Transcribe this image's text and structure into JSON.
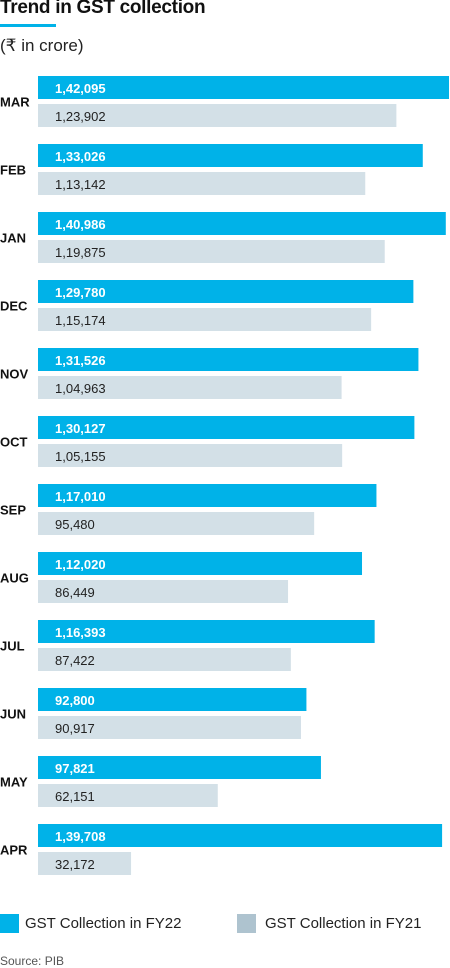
{
  "header": {
    "title": "Trend in GST collection",
    "subtitle": "(₹ in crore)"
  },
  "colors": {
    "fy22": "#00b2e8",
    "fy21": "#d3e0e7",
    "fy21_legend": "#aec3cf",
    "accent_rule": "#00b2e8"
  },
  "chart_data": {
    "type": "bar",
    "orientation": "horizontal",
    "categories": [
      "MAR",
      "FEB",
      "JAN",
      "DEC",
      "NOV",
      "OCT",
      "SEP",
      "AUG",
      "JUL",
      "JUN",
      "MAY",
      "APR"
    ],
    "series": [
      {
        "name": "GST Collection in FY22",
        "values": [
          142095,
          133026,
          140986,
          129780,
          131526,
          130127,
          117010,
          112020,
          116393,
          92800,
          97821,
          139708
        ],
        "labels": [
          "1,42,095",
          "1,33,026",
          "1,40,986",
          "1,29,780",
          "1,31,526",
          "1,30,127",
          "1,17,010",
          "1,12,020",
          "1,16,393",
          "92,800",
          "97,821",
          "1,39,708"
        ]
      },
      {
        "name": "GST Collection in FY21",
        "values": [
          123902,
          113142,
          119875,
          115174,
          104963,
          105155,
          95480,
          86449,
          87422,
          90917,
          62151,
          32172
        ],
        "labels": [
          "1,23,902",
          "1,13,142",
          "1,19,875",
          "1,15,174",
          "1,04,963",
          "1,05,155",
          "95,480",
          "86,449",
          "87,422",
          "90,917",
          "62,151",
          "32,172"
        ]
      }
    ],
    "xlim": [
      0,
      142095
    ],
    "grid": false,
    "legend_placement": "bottom"
  },
  "legend": [
    {
      "label": "GST Collection in FY22"
    },
    {
      "label": "GST Collection in FY21"
    }
  ],
  "source": "Source: PIB"
}
